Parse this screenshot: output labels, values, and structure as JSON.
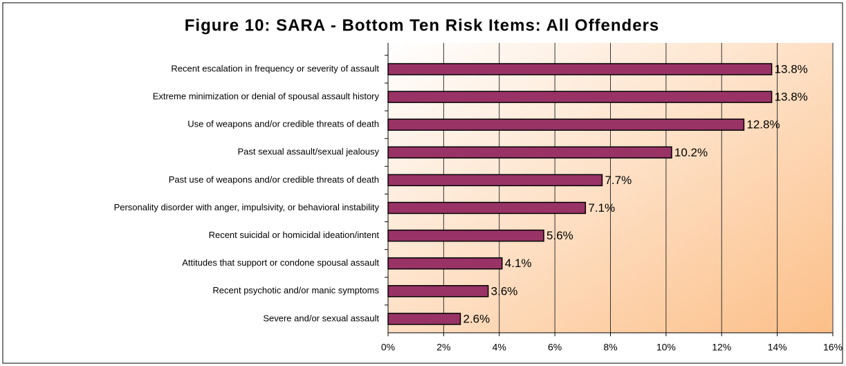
{
  "chart_data": {
    "type": "barh",
    "title": "Figure 10: SARA - Bottom Ten Risk Items: All Offenders",
    "categories": [
      "Recent escalation in frequency or severity of assault",
      "Extreme minimization or denial of spousal assault history",
      "Use of weapons and/or credible threats of death",
      "Past sexual assault/sexual jealousy",
      "Past use of weapons and/or credible threats of death",
      "Personality disorder with anger, impulsivity, or behavioral instability",
      "Recent suicidal or homicidal ideation/intent",
      "Attitudes that support or condone spousal assault",
      "Recent psychotic and/or manic symptoms",
      "Severe and/or sexual assault"
    ],
    "values": [
      13.8,
      13.8,
      12.8,
      10.2,
      7.7,
      7.1,
      5.6,
      4.1,
      3.6,
      2.6
    ],
    "value_labels": [
      "13.8%",
      "13.8%",
      "12.8%",
      "10.2%",
      "7.7%",
      "7.1%",
      "5.6%",
      "4.1%",
      "3.6%",
      "2.6%"
    ],
    "color": "#993366",
    "xlim": [
      0,
      16
    ],
    "xticks": [
      {
        "value": 0,
        "label": "0%"
      },
      {
        "value": 2,
        "label": "2%"
      },
      {
        "value": 4,
        "label": "4%"
      },
      {
        "value": 6,
        "label": "6%"
      },
      {
        "value": 8,
        "label": "8%"
      },
      {
        "value": 10,
        "label": "10%"
      },
      {
        "value": 12,
        "label": "12%"
      },
      {
        "value": 14,
        "label": "14%"
      },
      {
        "value": 16,
        "label": "16%"
      }
    ],
    "grid": true
  }
}
